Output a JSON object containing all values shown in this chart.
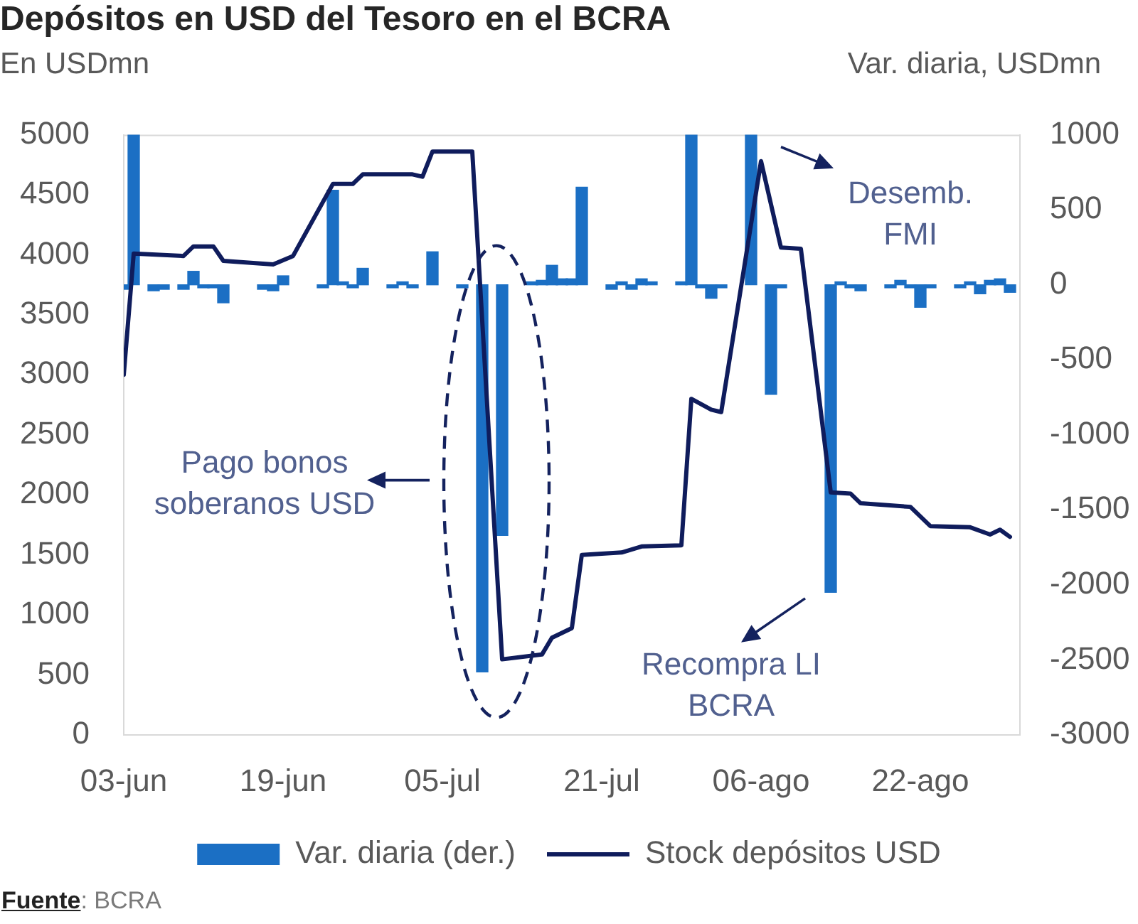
{
  "chart_data": {
    "type": "bar",
    "title": "Depósitos en USD del Tesoro en el BCRA",
    "ylabel": "En USDmn",
    "y2label": "Var. diaria, USDmn",
    "xlim": [
      "--06-03",
      "--09-01"
    ],
    "xticks": [
      {
        "value": "--06-03",
        "label": "03-jun"
      },
      {
        "value": "--06-19",
        "label": "19-jun"
      },
      {
        "value": "--07-05",
        "label": "05-jul"
      },
      {
        "value": "--07-21",
        "label": "21-jul"
      },
      {
        "value": "--08-06",
        "label": "06-ago"
      },
      {
        "value": "--08-22",
        "label": "22-ago"
      }
    ],
    "ylim": [
      0,
      5000
    ],
    "yticks": [
      0,
      500,
      1000,
      1500,
      2000,
      2500,
      3000,
      3500,
      4000,
      4500,
      5000
    ],
    "y2lim": [
      -3000,
      1000
    ],
    "y2ticks": [
      -3000,
      -2500,
      -2000,
      -1500,
      -1000,
      -500,
      0,
      500,
      1000
    ],
    "grid": false,
    "legend": "bottom",
    "series": [
      {
        "name": "Var. diaria (der.)",
        "axis": "y2",
        "color": "#1b6fc4",
        "x": [
          "--06-03",
          "--06-04",
          "--06-06",
          "--06-07",
          "--06-09",
          "--06-10",
          "--06-11",
          "--06-12",
          "--06-13",
          "--06-17",
          "--06-18",
          "--06-19",
          "--06-23",
          "--06-24",
          "--06-25",
          "--06-26",
          "--06-27",
          "--06-30",
          "--07-01",
          "--07-02",
          "--07-04",
          "--07-07",
          "--07-09",
          "--07-11",
          "--07-14",
          "--07-15",
          "--07-16",
          "--07-17",
          "--07-18",
          "--07-19",
          "--07-22",
          "--07-23",
          "--07-24",
          "--07-25",
          "--07-26",
          "--07-29",
          "--07-30",
          "--07-31",
          "--08-01",
          "--08-02",
          "--08-05",
          "--08-07",
          "--08-08",
          "--08-13",
          "--08-14",
          "--08-15",
          "--08-16",
          "--08-19",
          "--08-20",
          "--08-21",
          "--08-22",
          "--08-23",
          "--08-26",
          "--08-27",
          "--08-28",
          "--08-29",
          "--08-30",
          "--08-31"
        ],
        "values": [
          -30,
          1000,
          -40,
          -30,
          -30,
          90,
          -20,
          -20,
          -120,
          -30,
          -40,
          60,
          -20,
          630,
          20,
          -20,
          110,
          -20,
          20,
          -20,
          220,
          -20,
          -2580,
          -1670,
          20,
          30,
          130,
          40,
          40,
          650,
          -30,
          20,
          -30,
          40,
          20,
          20,
          1000,
          -20,
          -90,
          -20,
          1000,
          -730,
          -20,
          -2050,
          20,
          -20,
          -40,
          -20,
          30,
          -20,
          -150,
          -20,
          -20,
          20,
          -60,
          30,
          40,
          -50
        ]
      },
      {
        "name": "Stock depósitos USD",
        "type": "line",
        "color": "#0f1c5c",
        "x": [
          "--06-03",
          "--06-04",
          "--06-09",
          "--06-10",
          "--06-12",
          "--06-13",
          "--06-18",
          "--06-20",
          "--06-24",
          "--06-26",
          "--06-27",
          "--07-02",
          "--07-03",
          "--07-04",
          "--07-08",
          "--07-11",
          "--07-15",
          "--07-16",
          "--07-18",
          "--07-19",
          "--07-23",
          "--07-25",
          "--07-29",
          "--07-30",
          "--08-01",
          "--08-02",
          "--08-06",
          "--08-08",
          "--08-10",
          "--08-13",
          "--08-15",
          "--08-16",
          "--08-21",
          "--08-23",
          "--08-27",
          "--08-29",
          "--08-30",
          "--08-31"
        ],
        "values": [
          3000,
          4010,
          3990,
          4070,
          4070,
          3950,
          3920,
          3990,
          4590,
          4590,
          4670,
          4670,
          4650,
          4860,
          4860,
          630,
          670,
          810,
          890,
          1500,
          1520,
          1570,
          1580,
          2800,
          2710,
          2690,
          4780,
          4060,
          4050,
          2020,
          2010,
          1930,
          1900,
          1740,
          1730,
          1670,
          1710,
          1650
        ]
      }
    ],
    "annotations": [
      "Pago bonos soberanos USD",
      {
        "text": "Desemb. FMI",
        "x": "--08-06",
        "y": 4780
      },
      {
        "text": "Recompra LI BCRA",
        "x": "--08-13",
        "y": 1150
      },
      "Fuente: BCRA"
    ]
  }
}
